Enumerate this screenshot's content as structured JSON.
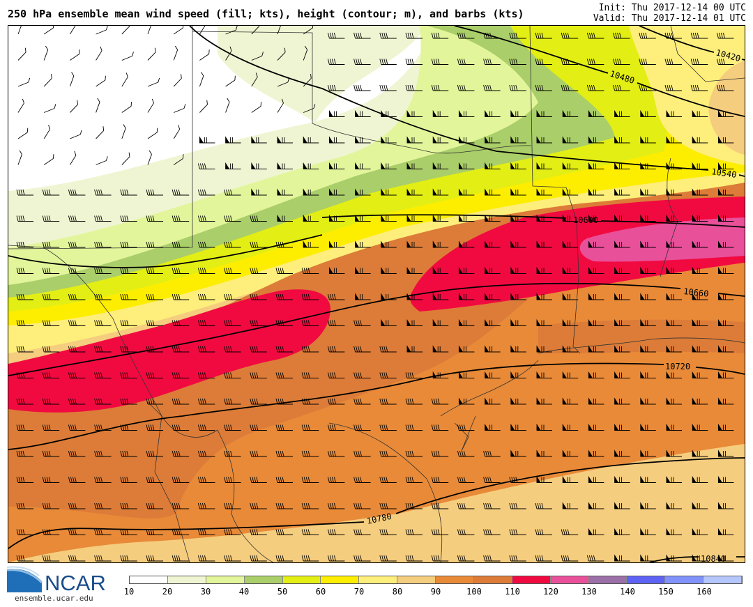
{
  "header": {
    "title": "250 hPa ensemble mean wind speed (fill; kts), height (contour; m), and barbs (kts)",
    "init": "Init: Thu 2017-12-14 00 UTC",
    "valid": "Valid: Thu 2017-12-14 01 UTC"
  },
  "map": {
    "fill_variable": "wind speed (kts)",
    "contour_variable": "height (m)",
    "contour_labels": [
      "10420",
      "10480",
      "10540",
      "10600",
      "10660",
      "10720",
      "10780",
      "10840"
    ]
  },
  "colorbar": {
    "tick_labels": [
      "10",
      "20",
      "30",
      "40",
      "50",
      "60",
      "70",
      "80",
      "90",
      "100",
      "110",
      "120",
      "130",
      "140",
      "150",
      "160"
    ],
    "colors": [
      "#ffffff",
      "#eff5d2",
      "#e2f59a",
      "#aace69",
      "#e3ee14",
      "#fdee00",
      "#feee7b",
      "#f5cd7e",
      "#e88a38",
      "#dc7c38",
      "#f10a40",
      "#e8509a",
      "#9b6fa8",
      "#5e63f5",
      "#8193fa",
      "#b4c6fc"
    ]
  },
  "logo": {
    "name": "NCAR",
    "url_text": "ensemble.ucar.edu"
  }
}
